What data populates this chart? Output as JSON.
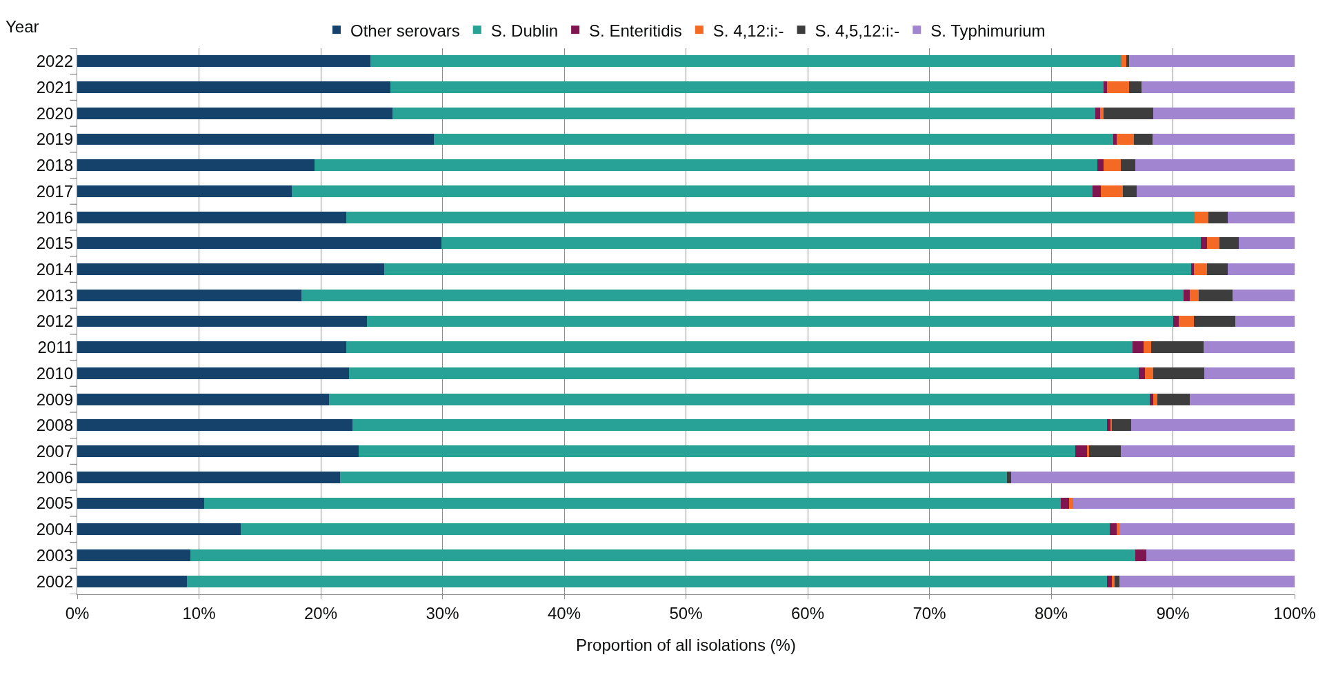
{
  "chart_data": {
    "type": "bar",
    "orientation": "horizontal",
    "stacked": true,
    "xlabel": "Proportion of all isolations (%)",
    "ylabel": "Year",
    "legend": "top",
    "grid": "x",
    "categories": [
      "2022",
      "2021",
      "2020",
      "2019",
      "2018",
      "2017",
      "2016",
      "2015",
      "2014",
      "2013",
      "2012",
      "2011",
      "2010",
      "2009",
      "2008",
      "2007",
      "2006",
      "2005",
      "2004",
      "2003",
      "2002"
    ],
    "xlim": [
      0,
      100
    ],
    "xticks": [
      {
        "value": 0,
        "label": "0%"
      },
      {
        "value": 10,
        "label": "10%"
      },
      {
        "value": 20,
        "label": "20%"
      },
      {
        "value": 30,
        "label": "30%"
      },
      {
        "value": 40,
        "label": "40%"
      },
      {
        "value": 50,
        "label": "50%"
      },
      {
        "value": 60,
        "label": "60%"
      },
      {
        "value": 70,
        "label": "70%"
      },
      {
        "value": 80,
        "label": "80%"
      },
      {
        "value": 90,
        "label": "90%"
      },
      {
        "value": 100,
        "label": "100%"
      }
    ],
    "series": [
      {
        "name": "Other serovars",
        "color": "#14426b",
        "values": [
          24.1,
          25.7,
          25.9,
          29.3,
          19.5,
          17.6,
          22.1,
          29.9,
          25.2,
          18.4,
          23.8,
          22.1,
          22.3,
          20.7,
          22.6,
          23.1,
          21.6,
          10.4,
          13.4,
          9.3,
          9.0
        ]
      },
      {
        "name": "S. Dublin",
        "color": "#28a197",
        "values": [
          61.7,
          58.6,
          57.7,
          55.8,
          64.3,
          65.8,
          69.7,
          62.4,
          66.3,
          72.5,
          66.2,
          64.6,
          64.9,
          67.4,
          62.0,
          58.9,
          54.8,
          70.4,
          71.4,
          77.6,
          75.6
        ]
      },
      {
        "name": "S. Enteritidis",
        "color": "#801650",
        "values": [
          0,
          0.3,
          0.4,
          0.3,
          0.5,
          0.7,
          0,
          0.5,
          0.2,
          0.5,
          0.5,
          0.9,
          0.5,
          0.3,
          0.3,
          1.0,
          0,
          0.7,
          0.6,
          0.9,
          0.4
        ]
      },
      {
        "name": "S. 4,12:i:-",
        "color": "#f46a25",
        "values": [
          0.4,
          1.8,
          0.3,
          1.4,
          1.4,
          1.8,
          1.1,
          1.0,
          1.1,
          0.7,
          1.2,
          0.6,
          0.7,
          0.3,
          0.1,
          0.1,
          0,
          0.3,
          0.2,
          0,
          0.2
        ]
      },
      {
        "name": "S. 4,5,12:i:-",
        "color": "#3d3d3d",
        "values": [
          0.2,
          1.0,
          4.1,
          1.5,
          1.2,
          1.1,
          1.6,
          1.6,
          1.7,
          2.8,
          3.4,
          4.3,
          4.2,
          2.7,
          1.6,
          2.6,
          0.3,
          0,
          0,
          0,
          0.4
        ]
      },
      {
        "name": "S. Typhimurium",
        "color": "#a285d1",
        "values": [
          13.6,
          12.6,
          11.6,
          11.7,
          13.1,
          13.0,
          5.5,
          4.6,
          5.5,
          5.1,
          4.9,
          7.5,
          7.4,
          8.6,
          13.4,
          14.3,
          23.3,
          18.2,
          14.4,
          12.2,
          14.4
        ]
      }
    ]
  }
}
